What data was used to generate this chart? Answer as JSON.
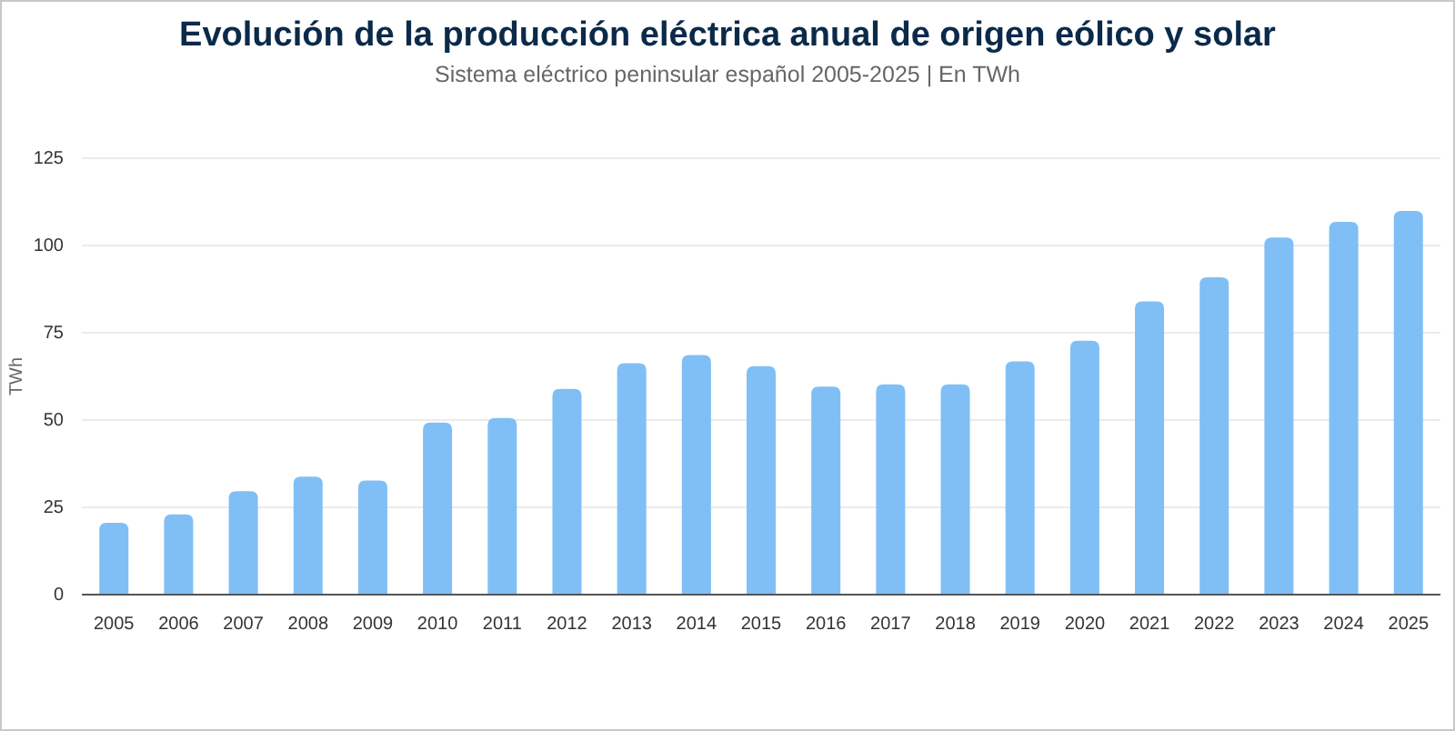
{
  "chart_data": {
    "type": "bar",
    "title": "Evolución de la producción eléctrica anual de origen eólico y solar",
    "subtitle": "Sistema eléctrico peninsular español 2005-2025 | En TWh",
    "ylabel": "TWh",
    "categories": [
      "2005",
      "2006",
      "2007",
      "2008",
      "2009",
      "2010",
      "2011",
      "2012",
      "2013",
      "2014",
      "2015",
      "2016",
      "2017",
      "2018",
      "2019",
      "2020",
      "2021",
      "2022",
      "2023",
      "2024",
      "2025"
    ],
    "values": [
      20.6,
      23.0,
      29.6,
      33.8,
      32.7,
      49.3,
      50.6,
      58.9,
      66.3,
      68.6,
      65.4,
      59.6,
      60.2,
      60.2,
      66.8,
      72.7,
      84.0,
      90.9,
      102.3,
      106.8,
      109.9
    ],
    "color": "#80bff5",
    "ylim": [
      0,
      125
    ],
    "yticks": [
      0,
      25,
      50,
      75,
      100,
      125
    ],
    "grid": "y"
  }
}
